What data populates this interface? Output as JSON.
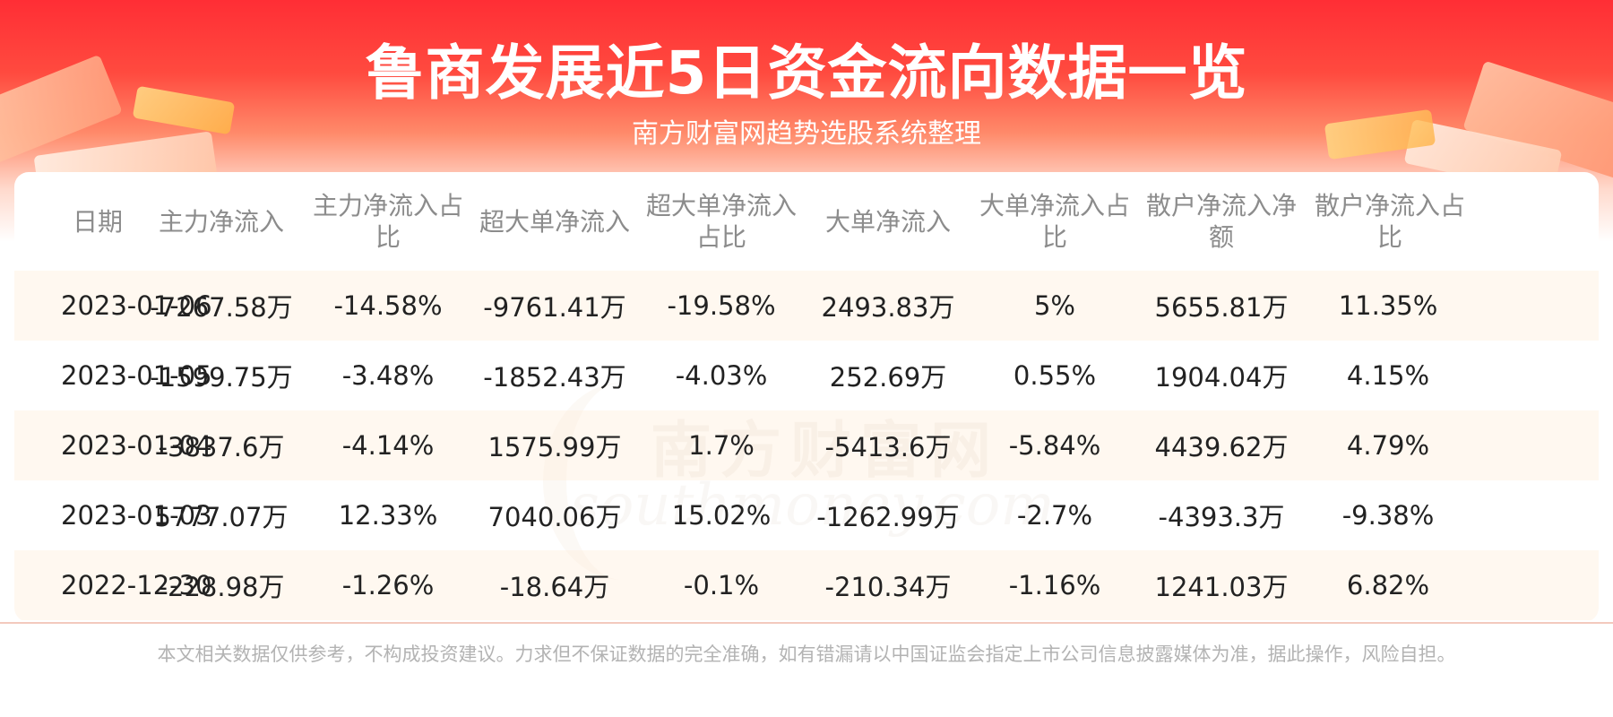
{
  "header": {
    "title": "鲁商发展近5日资金流向数据一览",
    "subtitle": "南方财富网趋势选股系统整理"
  },
  "watermark": {
    "cn": "南方财富网",
    "en": "southmoney.com"
  },
  "table": {
    "columns": [
      "日期",
      "主力净流入",
      "主力净流入占比",
      "超大单净流入",
      "超大单净流入占比",
      "大单净流入",
      "大单净流入占比",
      "散户净流入净额",
      "散户净流入占比"
    ],
    "rows": [
      [
        "2023-01-06",
        "-7267.58万",
        "-14.58%",
        "-9761.41万",
        "-19.58%",
        "2493.83万",
        "5%",
        "5655.81万",
        "11.35%"
      ],
      [
        "2023-01-05",
        "-1599.75万",
        "-3.48%",
        "-1852.43万",
        "-4.03%",
        "252.69万",
        "0.55%",
        "1904.04万",
        "4.15%"
      ],
      [
        "2023-01-04",
        "-3837.6万",
        "-4.14%",
        "1575.99万",
        "1.7%",
        "-5413.6万",
        "-5.84%",
        "4439.62万",
        "4.79%"
      ],
      [
        "2023-01-03",
        "5777.07万",
        "12.33%",
        "7040.06万",
        "15.02%",
        "-1262.99万",
        "-2.7%",
        "-4393.3万",
        "-9.38%"
      ],
      [
        "2022-12-30",
        "-228.98万",
        "-1.26%",
        "-18.64万",
        "-0.1%",
        "-210.34万",
        "-1.16%",
        "1241.03万",
        "6.82%"
      ]
    ]
  },
  "footer": {
    "disclaimer": "本文相关数据仅供参考，不构成投资建议。力求但不保证数据的完全准确，如有错漏请以中国证监会指定上市公司信息披露媒体为准，据此操作，风险自担。"
  },
  "colors": {
    "header_red": "#ff2e35",
    "header_text": "#ffffff",
    "column_header_text": "#8c8c8c",
    "cell_text": "#222222",
    "stripe": "#fff5eb"
  }
}
